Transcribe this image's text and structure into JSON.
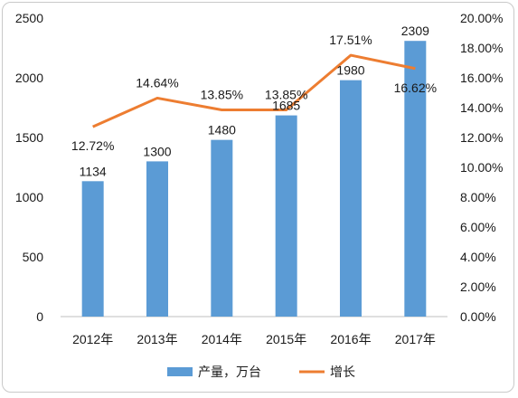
{
  "chart_data": {
    "type": "bar",
    "categories": [
      "2012年",
      "2013年",
      "2014年",
      "2015年",
      "2016年",
      "2017年"
    ],
    "series": [
      {
        "name": "产量，万台",
        "type": "bar",
        "axis": "left",
        "color": "#5b9bd5",
        "values": [
          1134,
          1300,
          1480,
          1685,
          1980,
          2309
        ],
        "labels": [
          "1134",
          "1300",
          "1480",
          "1685",
          "1980",
          "2309"
        ]
      },
      {
        "name": "增长",
        "type": "line",
        "axis": "right",
        "color": "#ed7d31",
        "values": [
          12.72,
          14.64,
          13.85,
          13.85,
          17.51,
          16.62
        ],
        "labels": [
          "12.72%",
          "14.64%",
          "13.85%",
          "13.85%",
          "17.51%",
          "16.62%"
        ]
      }
    ],
    "y_left": {
      "min": 0,
      "max": 2500,
      "ticks": [
        "0",
        "500",
        "1000",
        "1500",
        "2000",
        "2500"
      ]
    },
    "y_right": {
      "min": 0,
      "max": 20,
      "unit": "%",
      "ticks": [
        "0.00%",
        "2.00%",
        "4.00%",
        "6.00%",
        "8.00%",
        "10.00%",
        "12.00%",
        "14.00%",
        "16.00%",
        "18.00%",
        "20.00%"
      ]
    },
    "grid": false,
    "legend_position": "bottom"
  }
}
